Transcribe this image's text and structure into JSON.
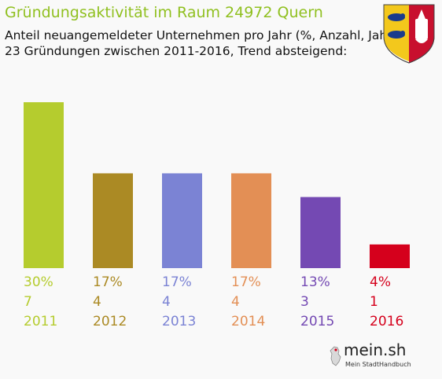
{
  "header": {
    "title": "Gründungsaktivität im Raum 24972 Quern",
    "subtitle1": "Anteil neuangemeldeter Unternehmen pro Jahr (%, Anzahl, Jahr)",
    "subtitle2": "23 Gründungen zwischen 2011-2016, Trend absteigend:"
  },
  "logo": {
    "name": "mein.sh",
    "tagline": "Mein StadtHandbuch"
  },
  "chart_data": {
    "type": "bar",
    "title": "Gründungsaktivität im Raum 24972 Quern",
    "categories": [
      "2011",
      "2012",
      "2013",
      "2014",
      "2015",
      "2016"
    ],
    "percent_labels": [
      "30%",
      "17%",
      "17%",
      "17%",
      "13%",
      "4%"
    ],
    "values": [
      7,
      4,
      4,
      4,
      3,
      1
    ],
    "colors": [
      "#b5cc2e",
      "#ab8a24",
      "#7b83d4",
      "#e38f55",
      "#7449b3",
      "#d5001c"
    ],
    "ylim": [
      0,
      7
    ],
    "grid": false,
    "legend": "none"
  }
}
